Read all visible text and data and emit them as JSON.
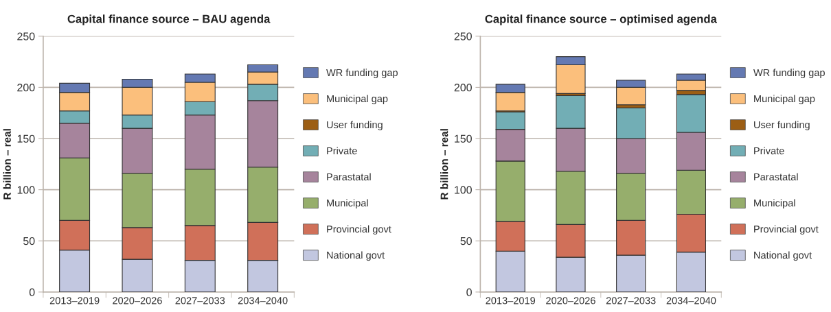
{
  "chart_data": [
    {
      "type": "bar",
      "title": "Capital finance source – BAU agenda",
      "ylabel": "R billion – real",
      "stacked": true,
      "categories": [
        "2013–2019",
        "2020–2026",
        "2027–2033",
        "2034–2040"
      ],
      "series": [
        {
          "name": "National govt",
          "color": "#c2c7e0",
          "values": [
            41,
            32,
            31,
            31
          ]
        },
        {
          "name": "Provincial govt",
          "color": "#d07059",
          "values": [
            29,
            31,
            34,
            37
          ]
        },
        {
          "name": "Municipal",
          "color": "#96ae6c",
          "values": [
            61,
            53,
            55,
            54
          ]
        },
        {
          "name": "Parastatal",
          "color": "#a6849c",
          "values": [
            34,
            44,
            53,
            65
          ]
        },
        {
          "name": "Private",
          "color": "#72aeb5",
          "values": [
            12,
            13,
            13,
            16
          ]
        },
        {
          "name": "User funding",
          "color": "#9c5e14",
          "values": [
            0,
            0,
            0,
            0
          ]
        },
        {
          "name": "Municipal gap",
          "color": "#fbbf7c",
          "values": [
            18,
            27,
            19,
            12
          ]
        },
        {
          "name": "WR funding gap",
          "color": "#6479b2",
          "values": [
            9,
            8,
            8,
            7
          ]
        }
      ],
      "ylim": [
        0,
        250
      ],
      "yticks": [
        0,
        50,
        100,
        150,
        200,
        250
      ],
      "grid": "y",
      "legend": "right"
    },
    {
      "type": "bar",
      "title": "Capital finance source – optimised agenda",
      "ylabel": "R billion – real",
      "stacked": true,
      "categories": [
        "2013–2019",
        "2020–2026",
        "2027–2033",
        "2034–2040"
      ],
      "series": [
        {
          "name": "National govt",
          "color": "#c2c7e0",
          "values": [
            40,
            34,
            36,
            39
          ]
        },
        {
          "name": "Provincial govt",
          "color": "#d07059",
          "values": [
            29,
            32,
            34,
            37
          ]
        },
        {
          "name": "Municipal",
          "color": "#96ae6c",
          "values": [
            59,
            52,
            46,
            43
          ]
        },
        {
          "name": "Parastatal",
          "color": "#a6849c",
          "values": [
            31,
            42,
            34,
            37
          ]
        },
        {
          "name": "Private",
          "color": "#72aeb5",
          "values": [
            17,
            32,
            30,
            37
          ]
        },
        {
          "name": "User funding",
          "color": "#9c5e14",
          "values": [
            1,
            2,
            3,
            4
          ]
        },
        {
          "name": "Municipal gap",
          "color": "#fbbf7c",
          "values": [
            18,
            28,
            17,
            10
          ]
        },
        {
          "name": "WR funding gap",
          "color": "#6479b2",
          "values": [
            8,
            8,
            7,
            6
          ]
        }
      ],
      "ylim": [
        0,
        250
      ],
      "yticks": [
        0,
        50,
        100,
        150,
        200,
        250
      ],
      "grid": "y",
      "legend": "right"
    }
  ]
}
